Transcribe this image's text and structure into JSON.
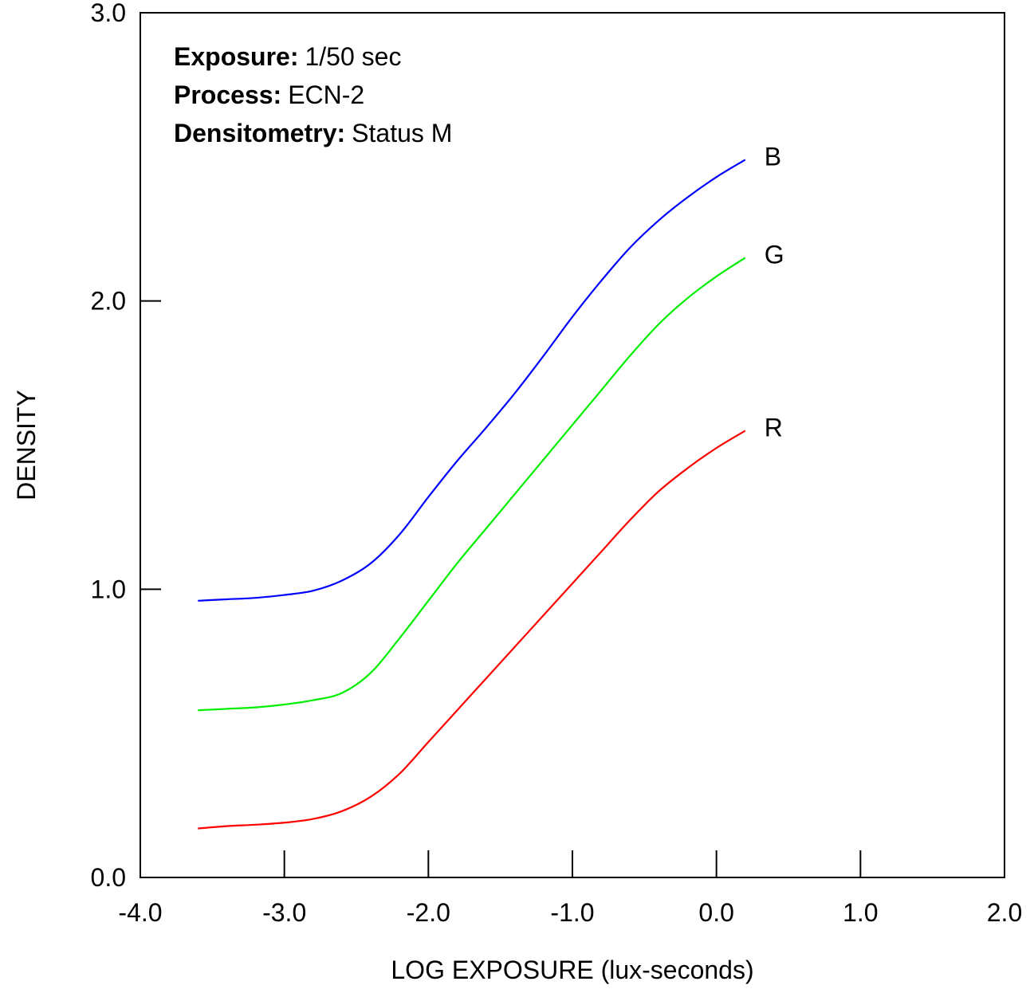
{
  "chart_data": {
    "type": "line",
    "title": "",
    "xlabel": "LOG EXPOSURE (lux-seconds)",
    "ylabel": "DENSITY",
    "xlim": [
      -4.0,
      2.0
    ],
    "ylim": [
      0.0,
      3.0
    ],
    "x_ticks": [
      -4.0,
      -3.0,
      -2.0,
      -1.0,
      0.0,
      1.0,
      2.0
    ],
    "x_tick_labels": [
      "-4.0",
      "-3.0",
      "-2.0",
      "-1.0",
      "0.0",
      "1.0",
      "2.0"
    ],
    "y_ticks": [
      0.0,
      1.0,
      2.0,
      3.0
    ],
    "y_tick_labels": [
      "0.0",
      "1.0",
      "2.0",
      "3.0"
    ],
    "grid": false,
    "notes": [
      {
        "key": "Exposure:",
        "value": "1/50 sec"
      },
      {
        "key": "Process:",
        "value": "ECN-2"
      },
      {
        "key": "Densitometry:",
        "value": "Status M"
      }
    ],
    "series": [
      {
        "name": "B",
        "color": "#0000ff",
        "points": [
          [
            -3.6,
            0.96
          ],
          [
            -3.4,
            0.965
          ],
          [
            -3.2,
            0.97
          ],
          [
            -3.0,
            0.98
          ],
          [
            -2.8,
            0.995
          ],
          [
            -2.6,
            1.03
          ],
          [
            -2.4,
            1.09
          ],
          [
            -2.2,
            1.19
          ],
          [
            -2.0,
            1.32
          ],
          [
            -1.8,
            1.445
          ],
          [
            -1.6,
            1.56
          ],
          [
            -1.4,
            1.68
          ],
          [
            -1.2,
            1.81
          ],
          [
            -1.0,
            1.945
          ],
          [
            -0.8,
            2.07
          ],
          [
            -0.6,
            2.185
          ],
          [
            -0.4,
            2.28
          ],
          [
            -0.2,
            2.36
          ],
          [
            0.0,
            2.43
          ],
          [
            0.2,
            2.49
          ]
        ]
      },
      {
        "name": "G",
        "color": "#00ee00",
        "points": [
          [
            -3.6,
            0.58
          ],
          [
            -3.4,
            0.585
          ],
          [
            -3.2,
            0.59
          ],
          [
            -3.0,
            0.6
          ],
          [
            -2.8,
            0.615
          ],
          [
            -2.6,
            0.64
          ],
          [
            -2.4,
            0.71
          ],
          [
            -2.2,
            0.83
          ],
          [
            -2.0,
            0.96
          ],
          [
            -1.8,
            1.09
          ],
          [
            -1.6,
            1.21
          ],
          [
            -1.4,
            1.33
          ],
          [
            -1.2,
            1.45
          ],
          [
            -1.0,
            1.57
          ],
          [
            -0.8,
            1.69
          ],
          [
            -0.6,
            1.81
          ],
          [
            -0.4,
            1.92
          ],
          [
            -0.2,
            2.01
          ],
          [
            0.0,
            2.085
          ],
          [
            0.2,
            2.15
          ]
        ]
      },
      {
        "name": "R",
        "color": "#ff0000",
        "points": [
          [
            -3.6,
            0.17
          ],
          [
            -3.4,
            0.178
          ],
          [
            -3.2,
            0.183
          ],
          [
            -3.0,
            0.19
          ],
          [
            -2.8,
            0.203
          ],
          [
            -2.6,
            0.23
          ],
          [
            -2.4,
            0.28
          ],
          [
            -2.2,
            0.36
          ],
          [
            -2.0,
            0.47
          ],
          [
            -1.8,
            0.58
          ],
          [
            -1.6,
            0.69
          ],
          [
            -1.4,
            0.8
          ],
          [
            -1.2,
            0.91
          ],
          [
            -1.0,
            1.02
          ],
          [
            -0.8,
            1.13
          ],
          [
            -0.6,
            1.24
          ],
          [
            -0.4,
            1.34
          ],
          [
            -0.2,
            1.42
          ],
          [
            0.0,
            1.49
          ],
          [
            0.2,
            1.55
          ]
        ]
      }
    ]
  }
}
